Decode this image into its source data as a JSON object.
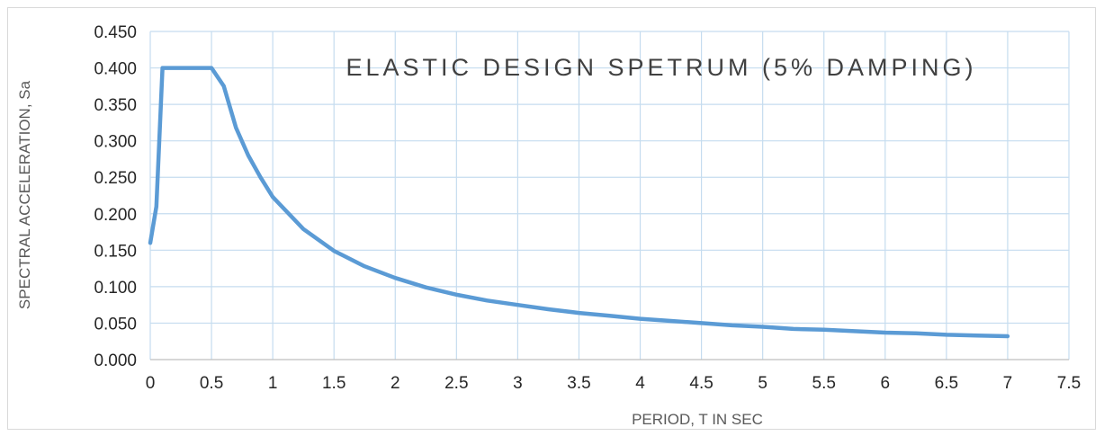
{
  "chart_data": {
    "type": "line",
    "title": "ELASTIC DESIGN SPETRUM (5% DAMPING)",
    "xlabel": "PERIOD, T IN SEC",
    "ylabel": "SPECTRAL ACCELERATION, Sa",
    "xlim": [
      0,
      7.5
    ],
    "ylim": [
      0,
      0.45
    ],
    "x_ticks": [
      "0",
      "0.5",
      "1",
      "1.5",
      "2",
      "2.5",
      "3",
      "3.5",
      "4",
      "4.5",
      "5",
      "5.5",
      "6",
      "6.5",
      "7",
      "7.5"
    ],
    "y_ticks": [
      "0.000",
      "0.050",
      "0.100",
      "0.150",
      "0.200",
      "0.250",
      "0.300",
      "0.350",
      "0.400",
      "0.450"
    ],
    "grid": "both",
    "legend": "none",
    "series": [
      {
        "color": "#5b9bd5",
        "points": [
          [
            0,
            0.16
          ],
          [
            0.05,
            0.21
          ],
          [
            0.1,
            0.4
          ],
          [
            0.2,
            0.4
          ],
          [
            0.3,
            0.4
          ],
          [
            0.4,
            0.4
          ],
          [
            0.5,
            0.4
          ],
          [
            0.6,
            0.375
          ],
          [
            0.7,
            0.318
          ],
          [
            0.8,
            0.28
          ],
          [
            0.9,
            0.25
          ],
          [
            1.0,
            0.223
          ],
          [
            1.25,
            0.179
          ],
          [
            1.5,
            0.149
          ],
          [
            1.75,
            0.128
          ],
          [
            2.0,
            0.112
          ],
          [
            2.25,
            0.099
          ],
          [
            2.5,
            0.089
          ],
          [
            2.75,
            0.081
          ],
          [
            3.0,
            0.075
          ],
          [
            3.25,
            0.069
          ],
          [
            3.5,
            0.064
          ],
          [
            3.75,
            0.06
          ],
          [
            4.0,
            0.056
          ],
          [
            4.25,
            0.053
          ],
          [
            4.5,
            0.05
          ],
          [
            4.75,
            0.047
          ],
          [
            5.0,
            0.045
          ],
          [
            5.25,
            0.042
          ],
          [
            5.5,
            0.041
          ],
          [
            5.75,
            0.039
          ],
          [
            6.0,
            0.037
          ],
          [
            6.25,
            0.036
          ],
          [
            6.5,
            0.034
          ],
          [
            6.75,
            0.033
          ],
          [
            7.0,
            0.032
          ]
        ]
      }
    ]
  }
}
